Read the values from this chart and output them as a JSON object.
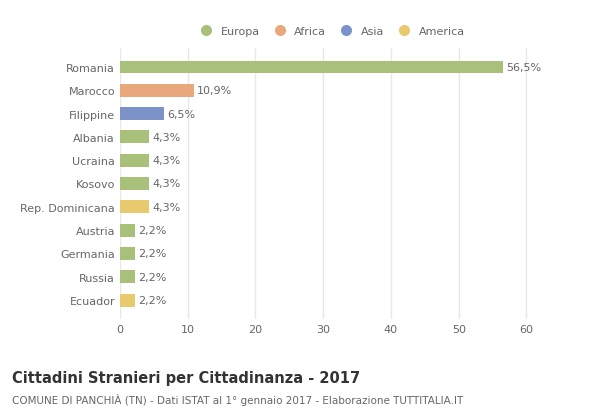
{
  "categories": [
    "Romania",
    "Marocco",
    "Filippine",
    "Albania",
    "Ucraina",
    "Kosovo",
    "Rep. Dominicana",
    "Austria",
    "Germania",
    "Russia",
    "Ecuador"
  ],
  "values": [
    56.5,
    10.9,
    6.5,
    4.3,
    4.3,
    4.3,
    4.3,
    2.2,
    2.2,
    2.2,
    2.2
  ],
  "labels": [
    "56,5%",
    "10,9%",
    "6,5%",
    "4,3%",
    "4,3%",
    "4,3%",
    "4,3%",
    "2,2%",
    "2,2%",
    "2,2%",
    "2,2%"
  ],
  "colors": [
    "#a8c07a",
    "#e8a87c",
    "#7b93c8",
    "#a8c07a",
    "#a8c07a",
    "#a8c07a",
    "#e8c96e",
    "#a8c07a",
    "#a8c07a",
    "#a8c07a",
    "#e8c96e"
  ],
  "legend": [
    {
      "label": "Europa",
      "color": "#a8c07a"
    },
    {
      "label": "Africa",
      "color": "#e8a87c"
    },
    {
      "label": "Asia",
      "color": "#7b93c8"
    },
    {
      "label": "America",
      "color": "#e8c96e"
    }
  ],
  "xlim": [
    0,
    62
  ],
  "xticks": [
    0,
    10,
    20,
    30,
    40,
    50,
    60
  ],
  "title": "Cittadini Stranieri per Cittadinanza - 2017",
  "subtitle": "COMUNE DI PANCHIÀ (TN) - Dati ISTAT al 1° gennaio 2017 - Elaborazione TUTTITALIA.IT",
  "background_color": "#ffffff",
  "bar_height": 0.55,
  "grid_color": "#e8e8e8",
  "title_fontsize": 10.5,
  "subtitle_fontsize": 7.5,
  "label_fontsize": 8,
  "tick_fontsize": 8,
  "legend_fontsize": 8
}
